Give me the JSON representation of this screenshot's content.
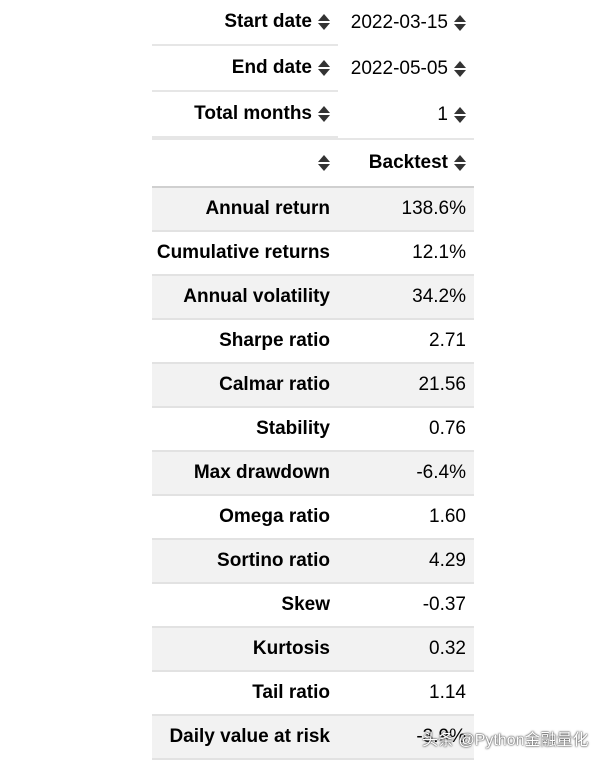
{
  "header": [
    {
      "label": "Start date",
      "value": "2022-03-15"
    },
    {
      "label": "End date",
      "value": "2022-05-05"
    },
    {
      "label": "Total months",
      "value": "1"
    },
    {
      "label": "",
      "value": "Backtest"
    }
  ],
  "rows": [
    {
      "label": "Annual return",
      "value": "138.6%"
    },
    {
      "label": "Cumulative returns",
      "value": "12.1%"
    },
    {
      "label": "Annual volatility",
      "value": "34.2%"
    },
    {
      "label": "Sharpe ratio",
      "value": "2.71"
    },
    {
      "label": "Calmar ratio",
      "value": "21.56"
    },
    {
      "label": "Stability",
      "value": "0.76"
    },
    {
      "label": "Max drawdown",
      "value": "-6.4%"
    },
    {
      "label": "Omega ratio",
      "value": "1.60"
    },
    {
      "label": "Sortino ratio",
      "value": "4.29"
    },
    {
      "label": "Skew",
      "value": "-0.37"
    },
    {
      "label": "Kurtosis",
      "value": "0.32"
    },
    {
      "label": "Tail ratio",
      "value": "1.14"
    },
    {
      "label": "Daily value at risk",
      "value": "-3.9%"
    }
  ],
  "watermark": "头条 @Python金融量化"
}
